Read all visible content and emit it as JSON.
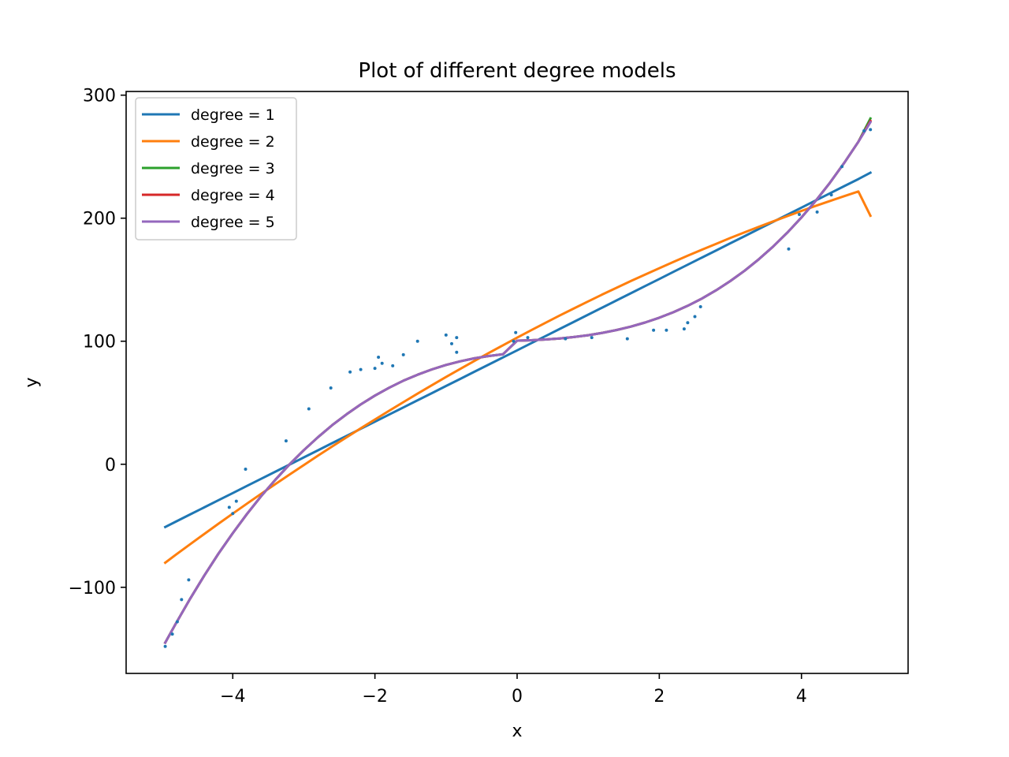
{
  "chart_data": {
    "type": "line",
    "title": "Plot of different degree models",
    "xlabel": "x",
    "ylabel": "y",
    "xlim": [
      -5.5,
      5.5
    ],
    "ylim": [
      -170,
      303
    ],
    "xticks": [
      -4,
      -2,
      0,
      2,
      4
    ],
    "yticks": [
      -100,
      0,
      100,
      200,
      300
    ],
    "grid": false,
    "legend_position": "top-left",
    "scatter": {
      "name": "",
      "color": "#1f77b4",
      "x": [
        -4.95,
        -4.85,
        -4.78,
        -4.72,
        -4.62,
        -4.05,
        -4.0,
        -3.95,
        -3.82,
        -3.25,
        -2.93,
        -2.62,
        -2.35,
        -2.2,
        -2.0,
        -1.95,
        -1.9,
        -1.75,
        -1.6,
        -1.4,
        -1.0,
        -0.92,
        -0.85,
        -0.85,
        -0.05,
        -0.02,
        0.15,
        0.68,
        1.05,
        1.55,
        1.92,
        2.1,
        2.35,
        2.4,
        2.5,
        2.58,
        3.82,
        3.97,
        4.22,
        4.42,
        4.57,
        4.88,
        4.97
      ],
      "y": [
        -148,
        -138,
        -128,
        -110,
        -94,
        -35,
        -40,
        -30,
        -4,
        19,
        45,
        62,
        75,
        77,
        78,
        87,
        82,
        80,
        89,
        100,
        105,
        98,
        91,
        103,
        100,
        107,
        103,
        102,
        103,
        102,
        109,
        109,
        110,
        115,
        120,
        128,
        175,
        203,
        205,
        219,
        242,
        271,
        272
      ]
    },
    "x": [
      -4.95,
      -4.8,
      -4.6,
      -4.4,
      -4.2,
      -4.0,
      -3.8,
      -3.6,
      -3.4,
      -3.2,
      -3.0,
      -2.8,
      -2.6,
      -2.4,
      -2.2,
      -2.0,
      -1.8,
      -1.6,
      -1.4,
      -1.2,
      -1.0,
      -0.8,
      -0.6,
      -0.4,
      -0.2,
      0.0,
      0.2,
      0.4,
      0.6,
      0.8,
      1.0,
      1.2,
      1.4,
      1.6,
      1.8,
      2.0,
      2.2,
      2.4,
      2.6,
      2.8,
      3.0,
      3.2,
      3.4,
      3.6,
      3.8,
      4.0,
      4.2,
      4.4,
      4.6,
      4.8,
      4.97
    ],
    "series": [
      {
        "name": "degree = 1",
        "color": "#1f77b4",
        "values": [
          -51,
          -46.6,
          -40.8,
          -35,
          -29.2,
          -23.4,
          -17.6,
          -11.8,
          -6,
          -0.2,
          5.6,
          11.4,
          17.2,
          23,
          28.8,
          34.6,
          40.4,
          46.2,
          52,
          57.8,
          63.6,
          69.4,
          75.2,
          81,
          86.8,
          92.6,
          98.4,
          104.2,
          110,
          115.8,
          121.6,
          127.4,
          133.2,
          139,
          144.8,
          150.6,
          156.4,
          162.2,
          168,
          173.8,
          179.6,
          185.4,
          191.2,
          197,
          202.8,
          208.6,
          214.4,
          220.2,
          226,
          231.8,
          237
        ]
      },
      {
        "name": "degree = 2",
        "color": "#ff7f0e",
        "values": [
          -80,
          -73.5,
          -65,
          -56.6,
          -48.3,
          -40.1,
          -32.0,
          -24.0,
          -16.1,
          -8.3,
          -0.6,
          7.0,
          14.5,
          21.9,
          29.2,
          36.4,
          43.5,
          50.5,
          57.4,
          64.2,
          70.9,
          77.5,
          84.0,
          90.4,
          96.7,
          102.9,
          109.0,
          115.0,
          120.9,
          126.7,
          132.4,
          138.0,
          143.5,
          148.9,
          154.2,
          159.4,
          164.5,
          169.5,
          174.4,
          179.2,
          183.9,
          188.5,
          193.0,
          197.4,
          201.7,
          205.9,
          210.0,
          214.0,
          217.9,
          221.7,
          202
        ]
      },
      {
        "name": "degree = 3",
        "color": "#2ca02c",
        "values": [
          -145,
          -129.4,
          -109.3,
          -90.4,
          -72.6,
          -56.0,
          -40.4,
          -25.9,
          -12.5,
          0.0,
          11.5,
          22.1,
          31.8,
          40.6,
          48.6,
          55.8,
          62.2,
          67.9,
          72.8,
          77.1,
          80.7,
          83.7,
          86.1,
          88.0,
          89.4,
          100.5,
          100.8,
          101.4,
          102.2,
          103.4,
          104.9,
          106.8,
          109.1,
          111.9,
          115.2,
          119.1,
          123.6,
          128.8,
          134.7,
          141.4,
          148.9,
          157.3,
          166.6,
          176.9,
          188.2,
          200.6,
          214.1,
          228.8,
          244.8,
          262.1,
          281
        ]
      },
      {
        "name": "degree = 4",
        "color": "#d62728",
        "values": [
          -145,
          -129.4,
          -109.3,
          -90.4,
          -72.6,
          -56.0,
          -40.4,
          -25.9,
          -12.5,
          0.0,
          11.5,
          22.1,
          31.8,
          40.6,
          48.6,
          55.8,
          62.2,
          67.9,
          72.8,
          77.1,
          80.7,
          83.7,
          86.1,
          88.0,
          89.4,
          100.5,
          100.8,
          101.4,
          102.2,
          103.4,
          104.9,
          106.8,
          109.1,
          111.9,
          115.2,
          119.1,
          123.6,
          128.8,
          134.7,
          141.4,
          148.9,
          157.3,
          166.6,
          176.9,
          188.2,
          200.6,
          214.1,
          228.8,
          244.8,
          262.1,
          279
        ]
      },
      {
        "name": "degree = 5",
        "color": "#9467bd",
        "values": [
          -145,
          -129.4,
          -109.3,
          -90.4,
          -72.6,
          -56.0,
          -40.4,
          -25.9,
          -12.5,
          0.0,
          11.5,
          22.1,
          31.8,
          40.6,
          48.6,
          55.8,
          62.2,
          67.9,
          72.8,
          77.1,
          80.7,
          83.7,
          86.1,
          88.0,
          89.4,
          100.5,
          100.8,
          101.4,
          102.2,
          103.4,
          104.9,
          106.8,
          109.1,
          111.9,
          115.2,
          119.1,
          123.6,
          128.8,
          134.7,
          141.4,
          148.9,
          157.3,
          166.6,
          176.9,
          188.2,
          200.6,
          214.1,
          228.8,
          244.8,
          262.1,
          278
        ]
      }
    ]
  }
}
